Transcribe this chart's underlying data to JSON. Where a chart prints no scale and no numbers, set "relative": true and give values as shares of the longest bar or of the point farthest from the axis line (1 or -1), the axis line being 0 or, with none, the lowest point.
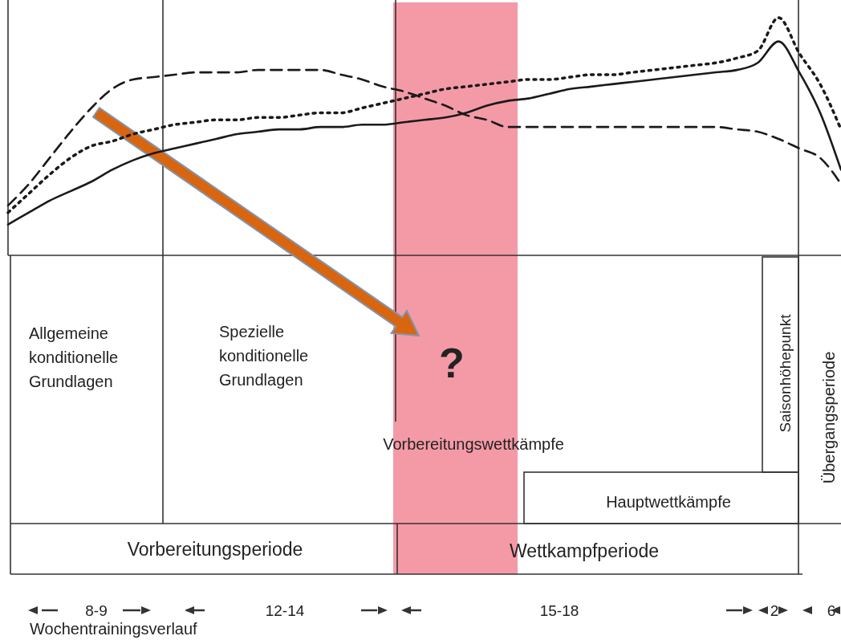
{
  "chart_data": {
    "type": "line",
    "relative": true,
    "categories": [
      null,
      null,
      null,
      null,
      null,
      null,
      null,
      null,
      null,
      null,
      null,
      null,
      null,
      null,
      null,
      null,
      null,
      null,
      null,
      null,
      null,
      null,
      null,
      null,
      null,
      null,
      null,
      null,
      null,
      null,
      null,
      null,
      null,
      null,
      null,
      null,
      null,
      null,
      null,
      null,
      null
    ],
    "series": [
      {
        "color": "#1a1a1a",
        "line_style": "dashed",
        "values": [
          0.21,
          0.3,
          0.41,
          0.52,
          0.62,
          0.7,
          0.74,
          0.75,
          0.76,
          0.77,
          0.77,
          0.77,
          0.78,
          0.78,
          0.78,
          0.78,
          0.76,
          0.74,
          0.71,
          0.69,
          0.66,
          0.63,
          0.59,
          0.57,
          0.54,
          0.54,
          0.54,
          0.54,
          0.54,
          0.54,
          0.54,
          0.54,
          0.54,
          0.54,
          0.54,
          0.53,
          0.52,
          0.49,
          0.45,
          0.41,
          0.3
        ]
      },
      {
        "color": "#1a1a1a",
        "line_style": "dotted",
        "values": [
          0.18,
          0.26,
          0.34,
          0.41,
          0.46,
          0.48,
          0.51,
          0.53,
          0.55,
          0.56,
          0.57,
          0.57,
          0.58,
          0.58,
          0.59,
          0.6,
          0.6,
          0.62,
          0.64,
          0.66,
          0.68,
          0.7,
          0.71,
          0.72,
          0.73,
          0.74,
          0.74,
          0.75,
          0.76,
          0.76,
          0.77,
          0.78,
          0.79,
          0.8,
          0.81,
          0.83,
          0.86,
          1,
          0.85,
          0.72,
          0.53
        ]
      },
      {
        "color": "#1a1a1a",
        "line_style": "solid",
        "values": [
          0.13,
          0.18,
          0.23,
          0.27,
          0.31,
          0.36,
          0.4,
          0.43,
          0.45,
          0.47,
          0.49,
          0.51,
          0.52,
          0.53,
          0.53,
          0.54,
          0.54,
          0.55,
          0.55,
          0.56,
          0.57,
          0.58,
          0.6,
          0.63,
          0.65,
          0.66,
          0.68,
          0.7,
          0.71,
          0.72,
          0.73,
          0.74,
          0.75,
          0.76,
          0.77,
          0.78,
          0.81,
          0.9,
          0.77,
          0.6,
          0.36
        ]
      }
    ],
    "annotations": [
      "Allgemeine\nkonditionelle\nGrundlagen",
      "Spezielle\nkonditionelle\nGrundlagen",
      "Vorbereitungswettkämpfe",
      "Hauptwettkämpfe",
      "Saisonhöhepunkt",
      "Übergangsperiode",
      "Vorbereitungsperiode",
      "Wettkampfperiode",
      "?",
      "8-9",
      "12-14",
      "15-18",
      "2",
      "6",
      "Wochentrainingsverlauf"
    ]
  }
}
